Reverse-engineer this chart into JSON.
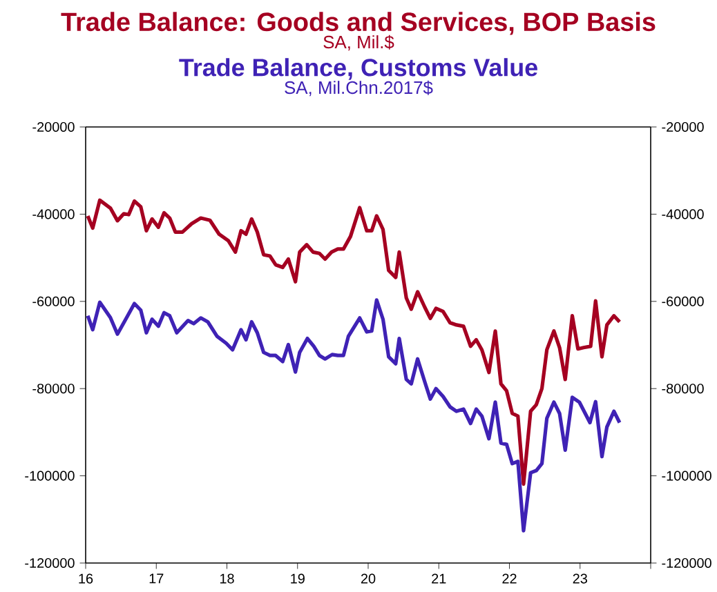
{
  "chart_data": {
    "type": "line",
    "xlim": [
      2016,
      2024
    ],
    "xticks": [
      {
        "value": 2016,
        "label": "16"
      },
      {
        "value": 2017,
        "label": "17"
      },
      {
        "value": 2018,
        "label": "18"
      },
      {
        "value": 2019,
        "label": "19"
      },
      {
        "value": 2020,
        "label": "20"
      },
      {
        "value": 2021,
        "label": "21"
      },
      {
        "value": 2022,
        "label": "22"
      },
      {
        "value": 2023,
        "label": "23"
      },
      {
        "value": 2024,
        "label": null
      }
    ],
    "ylim": [
      -120000,
      -20000
    ],
    "yticks": [
      -120000,
      -100000,
      -80000,
      -60000,
      -40000,
      -20000
    ],
    "y2lim": [
      -120000,
      -20000
    ],
    "y2ticks": [
      -120000,
      -100000,
      -80000,
      -60000,
      -40000,
      -20000
    ],
    "legend": "top",
    "annotations": [
      "SA, Mil.$",
      "SA, Mil.Chn.2017$"
    ],
    "series": [
      {
        "name": "Trade Balance:  Goods and Services, BOP Basis",
        "color": "#a50021",
        "x": [
          2016.03,
          2016.1,
          2016.2,
          2016.35,
          2016.45,
          2016.54,
          2016.61,
          2016.69,
          2016.78,
          2016.86,
          2016.94,
          2017.03,
          2017.11,
          2017.19,
          2017.27,
          2017.37,
          2017.5,
          2017.63,
          2017.76,
          2017.89,
          2018.02,
          2018.12,
          2018.2,
          2018.27,
          2018.35,
          2018.43,
          2018.52,
          2018.61,
          2018.69,
          2018.79,
          2018.87,
          2018.97,
          2019.03,
          2019.13,
          2019.22,
          2019.31,
          2019.39,
          2019.48,
          2019.57,
          2019.65,
          2019.75,
          2019.88,
          2019.98,
          2020.05,
          2020.12,
          2020.21,
          2020.29,
          2020.39,
          2020.44,
          2020.54,
          2020.61,
          2020.7,
          2020.8,
          2020.88,
          2020.96,
          2021.06,
          2021.16,
          2021.25,
          2021.35,
          2021.45,
          2021.53,
          2021.61,
          2021.71,
          2021.8,
          2021.88,
          2021.96,
          2022.04,
          2022.12,
          2022.2,
          2022.3,
          2022.38,
          2022.46,
          2022.53,
          2022.63,
          2022.71,
          2022.79,
          2022.89,
          2022.97,
          2023.05,
          2023.15,
          2023.22,
          2023.31,
          2023.38,
          2023.48,
          2023.56
        ],
        "values": [
          -40400,
          -43200,
          -36800,
          -38600,
          -41500,
          -39900,
          -40100,
          -37000,
          -38300,
          -43800,
          -41100,
          -43000,
          -39700,
          -40900,
          -44100,
          -44100,
          -42200,
          -40900,
          -41400,
          -44600,
          -46100,
          -48700,
          -43800,
          -44600,
          -41100,
          -44100,
          -49300,
          -49600,
          -51600,
          -52200,
          -50300,
          -55500,
          -48700,
          -47000,
          -48700,
          -49000,
          -50300,
          -48700,
          -48000,
          -48000,
          -45100,
          -38500,
          -43800,
          -43800,
          -40400,
          -43500,
          -52900,
          -54500,
          -48700,
          -59200,
          -61800,
          -57800,
          -61300,
          -63900,
          -61600,
          -62300,
          -64900,
          -65400,
          -65700,
          -70300,
          -68800,
          -71100,
          -76300,
          -66800,
          -78900,
          -80500,
          -85700,
          -86300,
          -101900,
          -85200,
          -83700,
          -80000,
          -71100,
          -66800,
          -70600,
          -77900,
          -63300,
          -70900,
          -70600,
          -70300,
          -59900,
          -72700,
          -65400,
          -63300,
          -64700
        ]
      },
      {
        "name": "Trade Balance, Customs Value",
        "color": "#3f22b5",
        "x": [
          2016.03,
          2016.1,
          2016.2,
          2016.35,
          2016.45,
          2016.54,
          2016.69,
          2016.78,
          2016.86,
          2016.94,
          2017.03,
          2017.11,
          2017.19,
          2017.29,
          2017.45,
          2017.53,
          2017.63,
          2017.73,
          2017.86,
          2017.99,
          2018.08,
          2018.2,
          2018.27,
          2018.35,
          2018.43,
          2018.52,
          2018.61,
          2018.69,
          2018.79,
          2018.87,
          2018.97,
          2019.03,
          2019.14,
          2019.23,
          2019.31,
          2019.39,
          2019.49,
          2019.57,
          2019.65,
          2019.72,
          2019.88,
          2019.98,
          2020.05,
          2020.12,
          2020.21,
          2020.29,
          2020.39,
          2020.44,
          2020.54,
          2020.61,
          2020.7,
          2020.8,
          2020.88,
          2020.96,
          2021.06,
          2021.16,
          2021.25,
          2021.35,
          2021.45,
          2021.53,
          2021.61,
          2021.71,
          2021.8,
          2021.88,
          2021.96,
          2022.04,
          2022.12,
          2022.2,
          2022.3,
          2022.38,
          2022.46,
          2022.53,
          2022.63,
          2022.71,
          2022.79,
          2022.89,
          2022.99,
          2023.14,
          2023.22,
          2023.31,
          2023.38,
          2023.48,
          2023.56
        ],
        "values": [
          -63300,
          -66500,
          -60200,
          -63700,
          -67500,
          -64900,
          -60500,
          -62000,
          -67200,
          -64100,
          -65700,
          -62600,
          -63300,
          -67200,
          -64400,
          -65100,
          -63800,
          -64700,
          -68000,
          -69600,
          -71100,
          -66500,
          -68800,
          -64700,
          -67200,
          -71700,
          -72400,
          -72400,
          -73800,
          -69900,
          -76200,
          -71700,
          -68500,
          -70300,
          -72400,
          -73200,
          -72200,
          -72400,
          -72400,
          -68000,
          -63800,
          -67000,
          -66800,
          -59700,
          -64100,
          -72700,
          -74300,
          -68500,
          -77900,
          -78900,
          -73200,
          -78400,
          -82400,
          -80000,
          -81800,
          -84200,
          -85200,
          -84700,
          -88000,
          -84700,
          -86300,
          -91500,
          -83100,
          -92500,
          -92800,
          -97200,
          -96700,
          -112600,
          -99300,
          -98800,
          -97200,
          -86800,
          -83100,
          -85700,
          -94100,
          -82000,
          -83100,
          -87800,
          -83000,
          -95600,
          -88800,
          -85200,
          -87800
        ]
      }
    ]
  }
}
